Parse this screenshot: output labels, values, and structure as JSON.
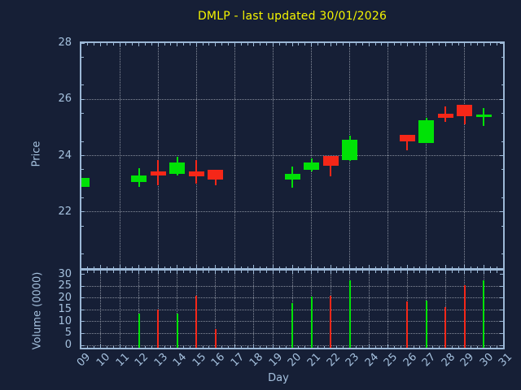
{
  "colors": {
    "background": "#161f36",
    "axis": "#a5c1de",
    "border": "#9cb8d6",
    "grid": "#c3c8d2",
    "up": "#00e206",
    "down": "#f52718",
    "title": "#f4f400"
  },
  "chart_data": {
    "type": "candlestick",
    "title": "DMLP - last updated 30/01/2026",
    "xlabel": "Day",
    "price_ylabel": "Price",
    "volume_ylabel": "Volume (0000)",
    "x_ticks": [
      "09",
      "10",
      "11",
      "12",
      "13",
      "14",
      "15",
      "16",
      "17",
      "18",
      "19",
      "20",
      "21",
      "22",
      "23",
      "24",
      "25",
      "26",
      "27",
      "28",
      "29",
      "30",
      "31"
    ],
    "x_range_days": [
      9,
      31
    ],
    "price_ylim": [
      20,
      28
    ],
    "price_yticks": [
      28,
      26,
      24,
      22
    ],
    "price_gridlines_y": [
      26,
      24,
      22
    ],
    "price_gridline_days": [
      11,
      13,
      15,
      17,
      19,
      21,
      23,
      25,
      27,
      29
    ],
    "volume_ylim": [
      0,
      31.5
    ],
    "volume_yticks": [
      30,
      25,
      20,
      15,
      10,
      5,
      0
    ],
    "volume_gridlines_y": [
      25,
      20,
      15,
      10,
      5,
      0
    ],
    "volume_gridline_days": [
      10,
      11,
      12,
      13,
      14,
      15,
      16,
      17,
      18,
      19,
      20,
      21,
      22,
      23,
      24,
      25,
      26,
      27,
      28,
      29,
      30
    ],
    "grid": "dotted",
    "legend": "none",
    "candles": [
      {
        "day": 9,
        "open": 22.9,
        "high": 23.2,
        "low": 22.9,
        "close": 23.2,
        "volume": null
      },
      {
        "day": 12,
        "open": 23.05,
        "high": 23.55,
        "low": 22.9,
        "close": 23.3,
        "volume": 13.5
      },
      {
        "day": 13,
        "open": 23.45,
        "high": 23.85,
        "low": 22.95,
        "close": 23.3,
        "volume": 15
      },
      {
        "day": 14,
        "open": 23.35,
        "high": 23.95,
        "low": 23.3,
        "close": 23.75,
        "volume": 13.5
      },
      {
        "day": 15,
        "open": 23.45,
        "high": 23.85,
        "low": 23.0,
        "close": 23.25,
        "volume": 21
      },
      {
        "day": 16,
        "open": 23.5,
        "high": 23.5,
        "low": 22.95,
        "close": 23.15,
        "volume": 7
      },
      {
        "day": 20,
        "open": 23.15,
        "high": 23.6,
        "low": 22.85,
        "close": 23.35,
        "volume": 18
      },
      {
        "day": 21,
        "open": 23.5,
        "high": 23.9,
        "low": 23.45,
        "close": 23.75,
        "volume": 20.5
      },
      {
        "day": 22,
        "open": 24.0,
        "high": 24.0,
        "low": 23.25,
        "close": 23.65,
        "volume": 21
      },
      {
        "day": 23,
        "open": 23.85,
        "high": 24.7,
        "low": 23.8,
        "close": 24.55,
        "volume": 27.5
      },
      {
        "day": 26,
        "open": 24.75,
        "high": 24.75,
        "low": 24.2,
        "close": 24.5,
        "volume": 18.5
      },
      {
        "day": 27,
        "open": 24.45,
        "high": 25.35,
        "low": 24.45,
        "close": 25.25,
        "volume": 19
      },
      {
        "day": 28,
        "open": 25.5,
        "high": 25.75,
        "low": 25.2,
        "close": 25.35,
        "volume": 16
      },
      {
        "day": 29,
        "open": 25.8,
        "high": 25.8,
        "low": 25.1,
        "close": 25.4,
        "volume": 25.5
      },
      {
        "day": 30,
        "open": 25.4,
        "high": 25.7,
        "low": 25.05,
        "close": 25.45,
        "volume": 27.5
      }
    ]
  }
}
